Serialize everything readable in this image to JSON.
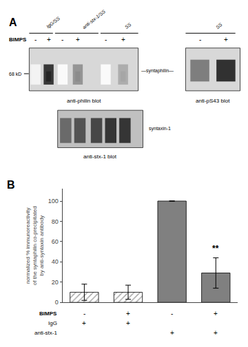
{
  "chart_data": [
    {
      "type": "blot",
      "panel_label": "A",
      "row_label": "BIMPS",
      "headers": [
        "IgG/SS",
        "anti-stx-1/SS",
        "SS",
        "SS"
      ],
      "lane_signs": [
        "-",
        "+",
        "-",
        "+",
        "-",
        "+"
      ],
      "right_lane_signs": [
        "-",
        "+"
      ],
      "band_labels": [
        "68 kD",
        "—syntaphilin—",
        "syntaxin-1"
      ],
      "blot_labels": [
        "anti-philin blot",
        "anti-pS43 blot",
        "anti-stx-1 blot"
      ]
    },
    {
      "type": "bar",
      "panel_label": "B",
      "categories": [
        null,
        null,
        null,
        null
      ],
      "values": [
        10,
        10,
        100,
        29
      ],
      "errors": [
        8,
        7,
        0,
        15
      ],
      "colors": [
        "#a8a8a8",
        "#a8a8a8",
        "#808080",
        "#808080"
      ],
      "ylabel": "normalized % immunoreactivity\nof the syntaphilin co-precipitated\nby anti-syntaxin antibody",
      "ylim": [
        0,
        112
      ],
      "yticks": [
        0,
        20,
        40,
        60,
        80,
        100
      ],
      "grid": false,
      "tick_labels": "y",
      "annotations": [
        {
          "text": "**",
          "x": 3,
          "y": 47
        }
      ],
      "table": [
        {
          "label": "BIMPS",
          "values": [
            "-",
            "+",
            "-",
            "+"
          ]
        },
        {
          "label": "IgG",
          "values": [
            "+",
            "+",
            null,
            null
          ]
        },
        {
          "label": "anti-stx-1",
          "values": [
            null,
            null,
            "+",
            "+"
          ]
        }
      ]
    }
  ]
}
